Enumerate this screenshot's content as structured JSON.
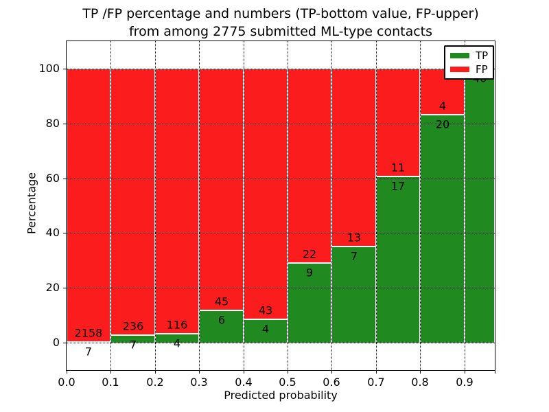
{
  "chart_data": {
    "type": "bar",
    "stacked": true,
    "title_lines": [
      "TP /FP percentage and numbers (TP-bottom value, FP-upper)",
      "from among 2775 submitted ML-type contacts"
    ],
    "xlabel": "Predicted probability",
    "ylabel": "Percentage",
    "xlim": [
      0.0,
      0.97
    ],
    "ylim": [
      -10,
      110
    ],
    "x_tick_values": [
      0.0,
      0.1,
      0.2,
      0.3,
      0.4,
      0.5,
      0.6,
      0.7,
      0.8,
      0.9
    ],
    "x_tick_labels": [
      "0.0",
      "0.1",
      "0.2",
      "0.3",
      "0.4",
      "0.5",
      "0.6",
      "0.7",
      "0.8",
      "0.9"
    ],
    "y_tick_values": [
      0,
      20,
      40,
      60,
      80,
      100
    ],
    "grid": {
      "visible": true,
      "style": "dotted",
      "color": "#000000"
    },
    "total_submitted": 2775,
    "colors": {
      "tp": "#208a20",
      "fp": "#fb1d1d",
      "bar_edge": "#ffffff"
    },
    "legend": {
      "position": "upper-right",
      "entries": [
        {
          "name": "TP",
          "color": "#208a20"
        },
        {
          "name": "FP",
          "color": "#fb1d1d"
        }
      ]
    },
    "categories": [
      "0.0-0.1",
      "0.1-0.2",
      "0.2-0.3",
      "0.3-0.4",
      "0.4-0.5",
      "0.5-0.6",
      "0.6-0.7",
      "0.7-0.8",
      "0.8-0.9",
      "0.9-1.0"
    ],
    "series": [
      {
        "name": "TP",
        "values": [
          7,
          7,
          4,
          6,
          4,
          9,
          7,
          17,
          20,
          46
        ]
      },
      {
        "name": "FP",
        "values": [
          2158,
          236,
          116,
          45,
          43,
          22,
          13,
          11,
          4,
          0
        ]
      }
    ],
    "bins": [
      {
        "x_start": 0.0,
        "x_end": 0.1,
        "tp_count": 7,
        "fp_count": 2158,
        "tp_pct": 0.32
      },
      {
        "x_start": 0.1,
        "x_end": 0.2,
        "tp_count": 7,
        "fp_count": 236,
        "tp_pct": 2.88
      },
      {
        "x_start": 0.2,
        "x_end": 0.3,
        "tp_count": 4,
        "fp_count": 116,
        "tp_pct": 3.33
      },
      {
        "x_start": 0.3,
        "x_end": 0.4,
        "tp_count": 6,
        "fp_count": 45,
        "tp_pct": 11.76
      },
      {
        "x_start": 0.4,
        "x_end": 0.5,
        "tp_count": 4,
        "fp_count": 43,
        "tp_pct": 8.51
      },
      {
        "x_start": 0.5,
        "x_end": 0.6,
        "tp_count": 9,
        "fp_count": 22,
        "tp_pct": 29.03
      },
      {
        "x_start": 0.6,
        "x_end": 0.7,
        "tp_count": 7,
        "fp_count": 13,
        "tp_pct": 35.0
      },
      {
        "x_start": 0.7,
        "x_end": 0.8,
        "tp_count": 17,
        "fp_count": 11,
        "tp_pct": 60.71
      },
      {
        "x_start": 0.8,
        "x_end": 0.9,
        "tp_count": 20,
        "fp_count": 4,
        "tp_pct": 83.33
      },
      {
        "x_start": 0.9,
        "x_end": 1.0,
        "tp_count": 46,
        "fp_count": 0,
        "tp_pct": 100.0
      }
    ]
  }
}
